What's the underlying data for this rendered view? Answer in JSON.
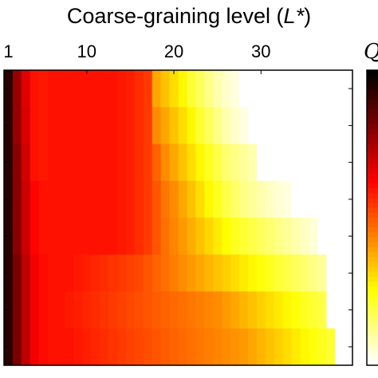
{
  "chart_data": {
    "type": "heatmap",
    "title": "Coarse-graining level (L*)",
    "title_parts": [
      "Coarse-graining level (",
      "L*",
      ")"
    ],
    "xlabel": "Coarse-graining level (L*)",
    "xlim": [
      1,
      40
    ],
    "x_ticks": [
      1,
      10,
      20,
      30
    ],
    "x_tick_labels": [
      "1",
      "10",
      "20",
      "30"
    ],
    "rows": 8,
    "colormap": "hot",
    "colorbar_label": "Q",
    "row_profiles": [
      {
        "row": 1,
        "values": [
          0.06,
          0.22,
          0.33,
          0.4,
          0.41,
          0.4,
          0.4,
          0.4,
          0.4,
          0.4,
          0.4,
          0.4,
          0.4,
          0.41,
          0.42,
          0.44,
          0.46,
          0.62,
          0.66,
          0.7,
          0.74,
          0.8,
          0.84,
          0.88,
          0.92,
          0.95,
          0.97,
          1.0,
          1.0,
          1.0,
          1.0,
          1.0,
          1.0,
          1.0,
          1.0,
          1.0,
          1.0,
          1.0,
          1.0,
          1.0
        ]
      },
      {
        "row": 2,
        "values": [
          0.06,
          0.22,
          0.32,
          0.4,
          0.41,
          0.4,
          0.4,
          0.4,
          0.4,
          0.4,
          0.4,
          0.4,
          0.4,
          0.41,
          0.42,
          0.44,
          0.46,
          0.58,
          0.62,
          0.66,
          0.7,
          0.74,
          0.8,
          0.84,
          0.88,
          0.92,
          0.95,
          0.97,
          1.0,
          1.0,
          1.0,
          1.0,
          1.0,
          1.0,
          1.0,
          1.0,
          1.0,
          1.0,
          1.0,
          1.0
        ]
      },
      {
        "row": 3,
        "values": [
          0.06,
          0.2,
          0.31,
          0.4,
          0.41,
          0.4,
          0.4,
          0.4,
          0.4,
          0.4,
          0.4,
          0.4,
          0.4,
          0.41,
          0.42,
          0.44,
          0.46,
          0.52,
          0.58,
          0.62,
          0.66,
          0.7,
          0.74,
          0.78,
          0.82,
          0.86,
          0.88,
          0.9,
          0.92,
          1.0,
          1.0,
          1.0,
          1.0,
          1.0,
          1.0,
          1.0,
          1.0,
          1.0,
          1.0,
          1.0
        ]
      },
      {
        "row": 4,
        "values": [
          0.06,
          0.2,
          0.3,
          0.38,
          0.4,
          0.4,
          0.4,
          0.4,
          0.4,
          0.4,
          0.4,
          0.4,
          0.4,
          0.41,
          0.42,
          0.44,
          0.46,
          0.5,
          0.55,
          0.58,
          0.62,
          0.66,
          0.7,
          0.74,
          0.78,
          0.82,
          0.85,
          0.88,
          0.9,
          0.92,
          0.94,
          0.96,
          0.97,
          1.0,
          1.0,
          1.0,
          1.0,
          1.0,
          1.0,
          1.0
        ]
      },
      {
        "row": 5,
        "values": [
          0.06,
          0.2,
          0.3,
          0.38,
          0.4,
          0.4,
          0.4,
          0.4,
          0.4,
          0.4,
          0.4,
          0.4,
          0.4,
          0.41,
          0.42,
          0.44,
          0.46,
          0.5,
          0.54,
          0.57,
          0.6,
          0.63,
          0.66,
          0.69,
          0.72,
          0.75,
          0.78,
          0.8,
          0.82,
          0.84,
          0.86,
          0.88,
          0.9,
          0.92,
          0.94,
          0.96,
          1.0,
          1.0,
          1.0,
          1.0
        ]
      },
      {
        "row": 6,
        "values": [
          0.06,
          0.18,
          0.28,
          0.36,
          0.39,
          0.4,
          0.4,
          0.4,
          0.41,
          0.42,
          0.43,
          0.44,
          0.45,
          0.46,
          0.47,
          0.48,
          0.5,
          0.52,
          0.54,
          0.56,
          0.58,
          0.6,
          0.62,
          0.64,
          0.66,
          0.68,
          0.7,
          0.72,
          0.74,
          0.76,
          0.78,
          0.8,
          0.82,
          0.84,
          0.86,
          0.88,
          0.9,
          1.0,
          1.0,
          1.0
        ]
      },
      {
        "row": 7,
        "values": [
          0.06,
          0.18,
          0.28,
          0.36,
          0.39,
          0.4,
          0.4,
          0.41,
          0.42,
          0.43,
          0.44,
          0.45,
          0.46,
          0.47,
          0.48,
          0.49,
          0.5,
          0.51,
          0.52,
          0.53,
          0.54,
          0.55,
          0.56,
          0.57,
          0.58,
          0.6,
          0.62,
          0.64,
          0.66,
          0.68,
          0.7,
          0.72,
          0.74,
          0.76,
          0.78,
          0.8,
          0.82,
          1.0,
          1.0,
          1.0
        ]
      },
      {
        "row": 8,
        "values": [
          0.06,
          0.18,
          0.28,
          0.36,
          0.39,
          0.4,
          0.4,
          0.4,
          0.41,
          0.42,
          0.43,
          0.44,
          0.45,
          0.46,
          0.47,
          0.48,
          0.49,
          0.5,
          0.51,
          0.52,
          0.53,
          0.54,
          0.55,
          0.56,
          0.57,
          0.58,
          0.59,
          0.6,
          0.62,
          0.64,
          0.66,
          0.68,
          0.7,
          0.72,
          0.74,
          0.76,
          0.78,
          0.8,
          1.0,
          1.0
        ]
      }
    ]
  }
}
